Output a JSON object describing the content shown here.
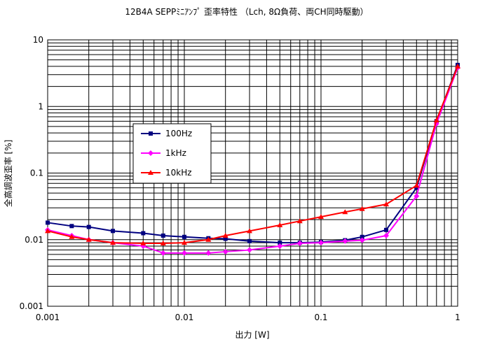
{
  "chart_data": {
    "type": "line",
    "title": "12B4A SEPPﾐﾆｱﾝﾌﾟ 歪率特性 （Lch, 8Ω負荷、両CH同時駆動）",
    "xlabel": "出力 [W]",
    "ylabel": "全高調波歪率 [%]",
    "x_scale": "log",
    "y_scale": "log",
    "xlim": [
      0.001,
      1
    ],
    "ylim": [
      0.001,
      10
    ],
    "x_ticks": [
      "0.001",
      "0.01",
      "0.1",
      "1"
    ],
    "y_ticks": [
      "0.001",
      "0.01",
      "0.1",
      "1",
      "10"
    ],
    "grid": true,
    "legend_position": "center-left",
    "series": [
      {
        "name": "100Hz",
        "color": "#000080",
        "marker": "square",
        "x": [
          0.001,
          0.0015,
          0.002,
          0.003,
          0.005,
          0.007,
          0.01,
          0.015,
          0.02,
          0.03,
          0.05,
          0.07,
          0.1,
          0.15,
          0.2,
          0.3,
          0.5,
          0.7,
          1.0
        ],
        "y": [
          0.018,
          0.016,
          0.0155,
          0.0135,
          0.0125,
          0.0115,
          0.011,
          0.0105,
          0.0103,
          0.0095,
          0.009,
          0.009,
          0.0092,
          0.0098,
          0.011,
          0.014,
          0.06,
          0.6,
          4.2
        ]
      },
      {
        "name": "1kHz",
        "color": "#ff00ff",
        "marker": "diamond",
        "x": [
          0.001,
          0.0015,
          0.002,
          0.003,
          0.005,
          0.007,
          0.01,
          0.015,
          0.02,
          0.03,
          0.05,
          0.07,
          0.1,
          0.15,
          0.2,
          0.3,
          0.5,
          0.7,
          1.0
        ],
        "y": [
          0.014,
          0.0115,
          0.01,
          0.009,
          0.008,
          0.0063,
          0.0063,
          0.0063,
          0.0066,
          0.007,
          0.008,
          0.0088,
          0.009,
          0.0095,
          0.0098,
          0.0115,
          0.045,
          0.55,
          3.8
        ]
      },
      {
        "name": "10kHz",
        "color": "#ff0000",
        "marker": "triangle",
        "x": [
          0.001,
          0.0015,
          0.002,
          0.003,
          0.005,
          0.007,
          0.01,
          0.015,
          0.02,
          0.03,
          0.05,
          0.07,
          0.1,
          0.15,
          0.2,
          0.3,
          0.5,
          0.7,
          1.0
        ],
        "y": [
          0.0135,
          0.011,
          0.01,
          0.009,
          0.0088,
          0.0088,
          0.009,
          0.01,
          0.0115,
          0.0135,
          0.0165,
          0.019,
          0.022,
          0.026,
          0.029,
          0.034,
          0.065,
          0.62,
          4.0
        ]
      }
    ]
  }
}
